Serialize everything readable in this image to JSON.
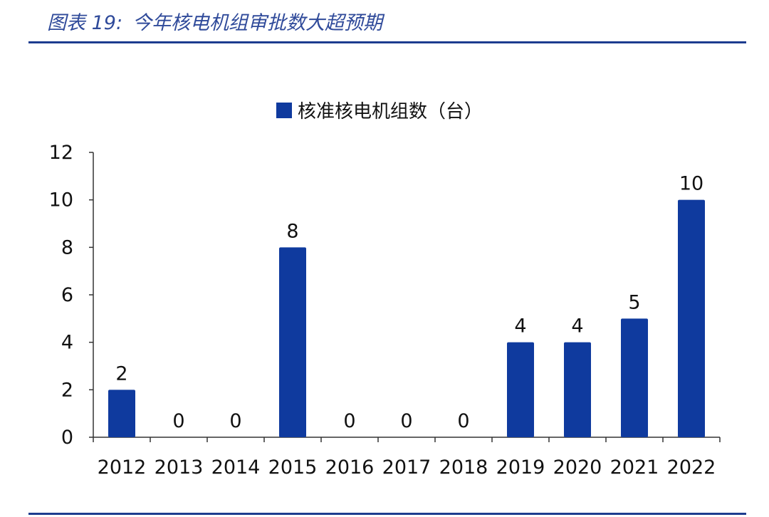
{
  "figure": {
    "label": "图表 19:",
    "title": "今年核电机组审批数大超预期"
  },
  "chart_data": {
    "type": "bar",
    "categories": [
      "2012",
      "2013",
      "2014",
      "2015",
      "2016",
      "2017",
      "2018",
      "2019",
      "2020",
      "2021",
      "2022"
    ],
    "series": [
      {
        "name": "核准核电机组数（台）",
        "values": [
          2,
          0,
          0,
          8,
          0,
          0,
          0,
          4,
          4,
          5,
          10
        ],
        "color": "#0f3a9e"
      }
    ],
    "ylim": [
      0,
      12
    ],
    "yticks": [
      0,
      2,
      4,
      6,
      8,
      10,
      12
    ],
    "legend_position": "top-center",
    "grid": false,
    "data_labels": true
  }
}
